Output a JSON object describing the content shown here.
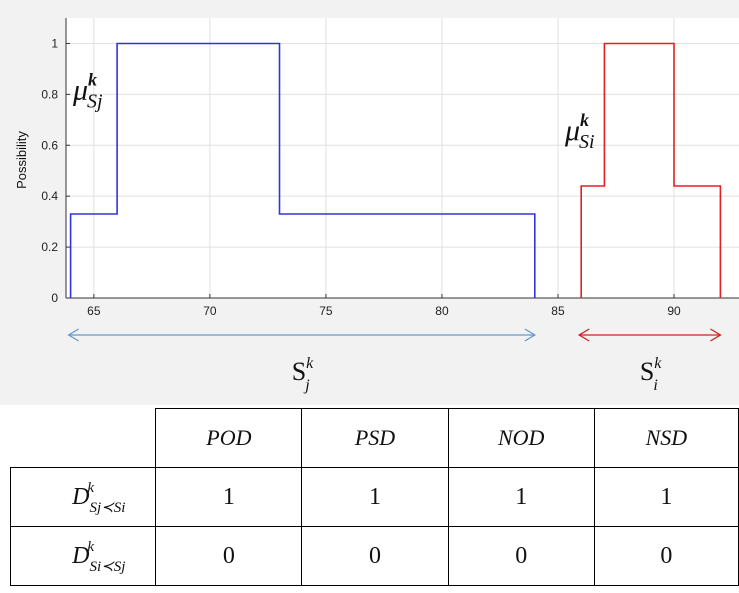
{
  "chart_data": {
    "type": "line",
    "step": true,
    "ylabel": "Possibility",
    "xlabel": "",
    "xlim": [
      63.8,
      92.8
    ],
    "ylim": [
      0,
      1.1
    ],
    "xticks": [
      "65",
      "70",
      "75",
      "80",
      "85",
      "90"
    ],
    "yticks": [
      "0",
      "0.2",
      "0.4",
      "0.6",
      "0.8",
      "1"
    ],
    "grid": true,
    "series": [
      {
        "name": "μSjk",
        "color": "#3333dd",
        "x": [
          64,
          64,
          66,
          66,
          73,
          73,
          84,
          84
        ],
        "y": [
          0,
          0.33,
          0.33,
          1,
          1,
          0.33,
          0.33,
          0
        ]
      },
      {
        "name": "μSik",
        "color": "#dd2222",
        "x": [
          86,
          86,
          87,
          87,
          90,
          90,
          92,
          92
        ],
        "y": [
          0,
          0.44,
          0.44,
          1,
          1,
          0.44,
          0.44,
          0
        ]
      }
    ],
    "annotations": [
      {
        "name": "μSjk",
        "base": "μ",
        "sub": "Sj",
        "sup": "k"
      },
      {
        "name": "μSik",
        "base": "μ",
        "sub": "Si",
        "sup": "k"
      }
    ],
    "ranges": [
      {
        "label_base": "S",
        "label_sub": "j",
        "label_sup": "k",
        "from": 64,
        "to": 84,
        "color": "#6699cc"
      },
      {
        "label_base": "S",
        "label_sub": "i",
        "label_sup": "k",
        "from": 86,
        "to": 92,
        "color": "#cc2222"
      }
    ]
  },
  "table": {
    "headers": [
      "POD",
      "PSD",
      "NOD",
      "NSD"
    ],
    "rows": [
      {
        "label_base": "D",
        "label_sub": "Sj≺Si",
        "label_sup": "k",
        "values": [
          "1",
          "1",
          "1",
          "1"
        ]
      },
      {
        "label_base": "D",
        "label_sub": "Si≺Sj",
        "label_sup": "k",
        "values": [
          "0",
          "0",
          "0",
          "0"
        ]
      }
    ]
  }
}
